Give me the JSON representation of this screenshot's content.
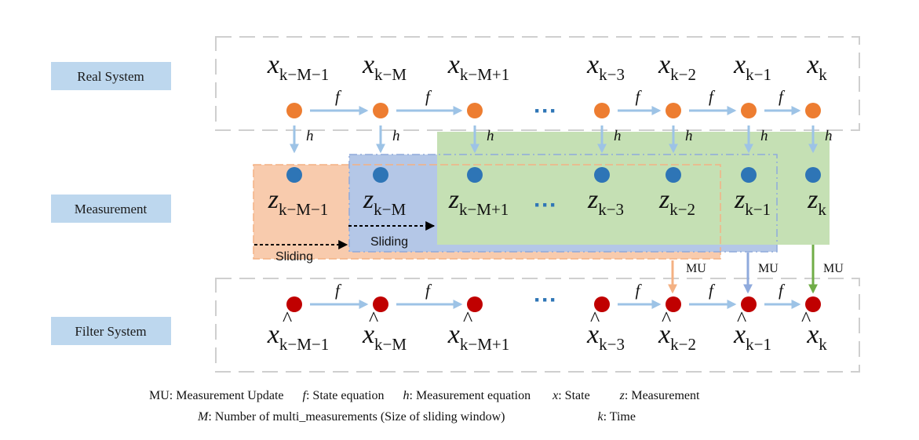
{
  "rows": {
    "real": "Real System",
    "measurement": "Measurement",
    "filter": "Filter System"
  },
  "state_symbol": "x",
  "meas_symbol": "z",
  "subscripts": [
    "k−M−1",
    "k−M",
    "k−M+1",
    "k−3",
    "k−2",
    "k−1",
    "k"
  ],
  "f_label": "f",
  "h_label": "h",
  "ellipsis": "···",
  "sliding": "Sliding",
  "mu": "MU",
  "legend": {
    "mu_key": "MU",
    "mu_text": ": Measurement  Update",
    "f_key": "f",
    "f_text": ": State equation",
    "h_key": "h",
    "h_text": ": Measurement equation",
    "x_key": "x",
    "x_text": ": State",
    "z_key": "z",
    "z_text": ": Measurement",
    "m_key": "M",
    "m_text": ": Number of multi_measurements (Size of sliding window)",
    "k_key": "k",
    "k_text": ": Time"
  },
  "colors": {
    "state_dot": "#ED7D31",
    "meas_dot": "#2E75B6",
    "filter_dot": "#C00000",
    "arrow": "#9DC3E6",
    "row_label_bg": "#BDD7EE",
    "window_orange": "#F8CBAD",
    "window_blue": "#B4C7E7",
    "window_green": "#C5E0B4",
    "mu_orange": "#F4B183",
    "mu_blue": "#8FAADC",
    "mu_green": "#70AD47"
  }
}
